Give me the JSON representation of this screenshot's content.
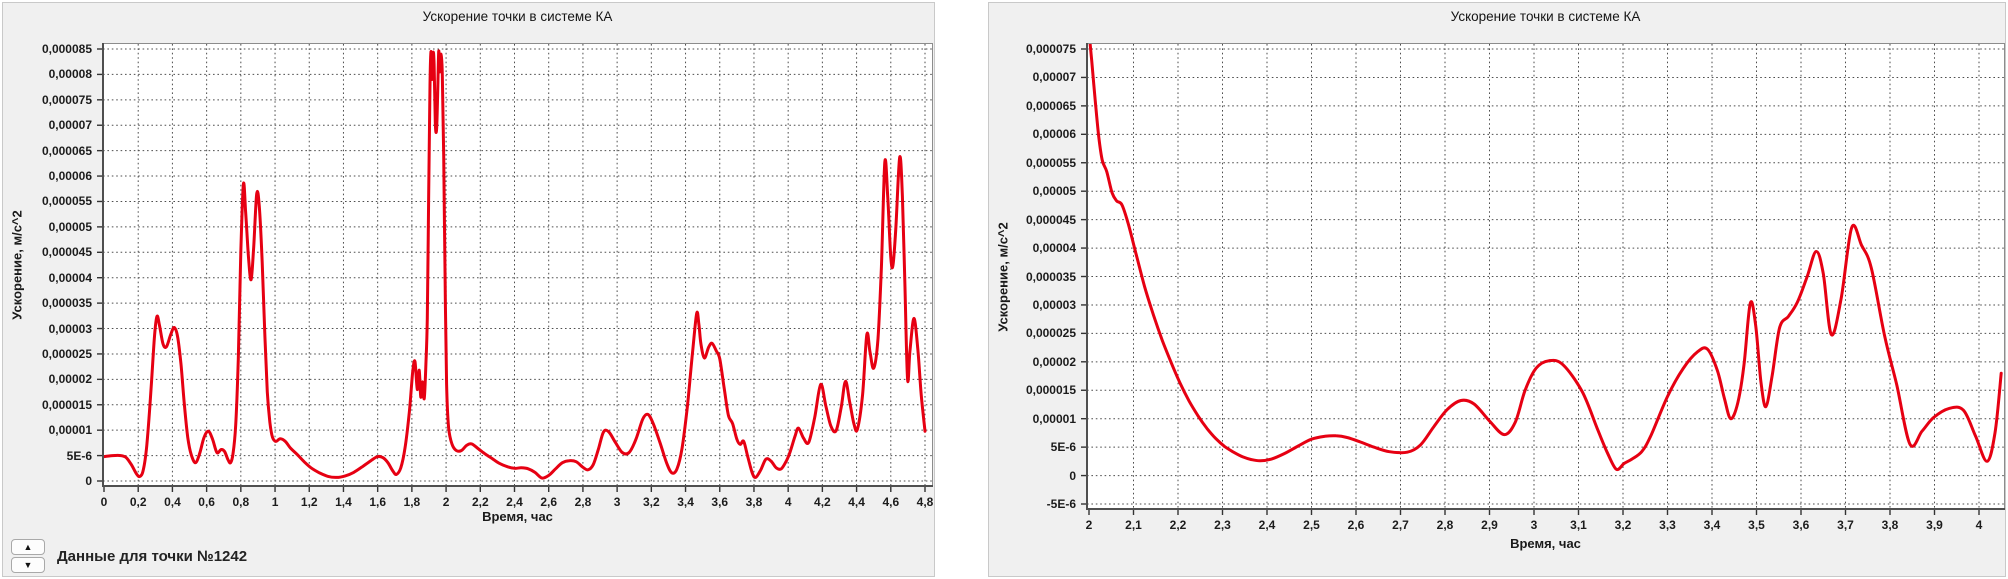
{
  "controls": {
    "point_selector": {
      "label": "Данные для точки №1242",
      "up_icon": "▲",
      "down_icon": "▼"
    }
  },
  "chart_data": [
    {
      "type": "line",
      "title": "Ускорение точки в системе КА",
      "xlabel": "Время, час",
      "ylabel": "Ускорение, м/с^2",
      "xlim": [
        0,
        4.8
      ],
      "ylim": [
        0,
        8.5e-05
      ],
      "grid": true,
      "legend": "none",
      "line_color": "#e60012",
      "grid_color": "#4e4e4e",
      "x_tick_labels": [
        "0",
        "0,2",
        "0,4",
        "0,6",
        "0,8",
        "1",
        "1,2",
        "1,4",
        "1,6",
        "1,8",
        "2",
        "2,2",
        "2,4",
        "2,6",
        "2,8",
        "3",
        "3,2",
        "3,4",
        "3,6",
        "3,8",
        "4",
        "4,2",
        "4,4",
        "4,6",
        "4,8"
      ],
      "y_tick_labels": [
        "0,000085",
        "0,00008",
        "0,000075",
        "0,00007",
        "0,000065",
        "0,00006",
        "0,000055",
        "0,00005",
        "0,000045",
        "0,00004",
        "0,000035",
        "0,00003",
        "0,000025",
        "0,00002",
        "0,000015",
        "0,00001",
        "5E-6",
        "0"
      ],
      "y_scale": 1e-06,
      "points": [
        [
          0,
          4.8
        ],
        [
          0.05,
          5
        ],
        [
          0.1,
          5
        ],
        [
          0.13,
          4.6
        ],
        [
          0.16,
          3.2
        ],
        [
          0.19,
          1.4
        ],
        [
          0.21,
          0.9
        ],
        [
          0.23,
          2.2
        ],
        [
          0.25,
          7
        ],
        [
          0.275,
          18
        ],
        [
          0.295,
          28.5
        ],
        [
          0.31,
          32.4
        ],
        [
          0.325,
          30.5
        ],
        [
          0.345,
          27
        ],
        [
          0.365,
          26.4
        ],
        [
          0.39,
          28.8
        ],
        [
          0.41,
          30.2
        ],
        [
          0.43,
          28.5
        ],
        [
          0.45,
          23
        ],
        [
          0.47,
          15
        ],
        [
          0.49,
          8.5
        ],
        [
          0.51,
          5.2
        ],
        [
          0.535,
          3.6
        ],
        [
          0.56,
          5.5
        ],
        [
          0.585,
          8.6
        ],
        [
          0.61,
          9.8
        ],
        [
          0.635,
          8.2
        ],
        [
          0.66,
          5.6
        ],
        [
          0.685,
          6.2
        ],
        [
          0.705,
          5.8
        ],
        [
          0.725,
          4.2
        ],
        [
          0.74,
          3.6
        ],
        [
          0.755,
          5.5
        ],
        [
          0.77,
          11
        ],
        [
          0.785,
          24
        ],
        [
          0.8,
          45
        ],
        [
          0.815,
          58.4
        ],
        [
          0.828,
          53
        ],
        [
          0.845,
          44
        ],
        [
          0.86,
          39.6
        ],
        [
          0.875,
          46
        ],
        [
          0.893,
          56.5
        ],
        [
          0.908,
          54
        ],
        [
          0.925,
          43
        ],
        [
          0.94,
          29
        ],
        [
          0.955,
          17.5
        ],
        [
          0.97,
          11.5
        ],
        [
          0.985,
          8.6
        ],
        [
          1.005,
          7.8
        ],
        [
          1.03,
          8.3
        ],
        [
          1.06,
          7.8
        ],
        [
          1.09,
          6.5
        ],
        [
          1.13,
          5.2
        ],
        [
          1.17,
          3.8
        ],
        [
          1.21,
          2.6
        ],
        [
          1.26,
          1.6
        ],
        [
          1.31,
          0.9
        ],
        [
          1.36,
          0.7
        ],
        [
          1.41,
          1
        ],
        [
          1.46,
          1.7
        ],
        [
          1.51,
          2.8
        ],
        [
          1.56,
          4
        ],
        [
          1.6,
          4.8
        ],
        [
          1.63,
          4.6
        ],
        [
          1.66,
          3.6
        ],
        [
          1.69,
          1.9
        ],
        [
          1.71,
          1.3
        ],
        [
          1.735,
          2.6
        ],
        [
          1.76,
          6.5
        ],
        [
          1.785,
          13.5
        ],
        [
          1.805,
          21.5
        ],
        [
          1.818,
          23.5
        ],
        [
          1.832,
          18
        ],
        [
          1.843,
          21.8
        ],
        [
          1.852,
          16.5
        ],
        [
          1.862,
          19.5
        ],
        [
          1.872,
          16.2
        ],
        [
          1.882,
          23
        ],
        [
          1.89,
          32
        ],
        [
          1.898,
          55
        ],
        [
          1.906,
          78
        ],
        [
          1.912,
          84.5
        ],
        [
          1.918,
          79
        ],
        [
          1.924,
          84.2
        ],
        [
          1.93,
          82
        ],
        [
          1.937,
          70.5
        ],
        [
          1.944,
          69
        ],
        [
          1.95,
          75
        ],
        [
          1.957,
          84.5
        ],
        [
          1.963,
          80.5
        ],
        [
          1.97,
          84
        ],
        [
          1.978,
          80
        ],
        [
          1.986,
          64
        ],
        [
          1.994,
          40
        ],
        [
          2.003,
          19
        ],
        [
          2.015,
          10.5
        ],
        [
          2.035,
          7.2
        ],
        [
          2.06,
          6
        ],
        [
          2.09,
          6
        ],
        [
          2.12,
          7
        ],
        [
          2.15,
          7.3
        ],
        [
          2.19,
          6.3
        ],
        [
          2.23,
          5.3
        ],
        [
          2.27,
          4.4
        ],
        [
          2.31,
          3.5
        ],
        [
          2.36,
          2.8
        ],
        [
          2.4,
          2.5
        ],
        [
          2.44,
          2.6
        ],
        [
          2.48,
          2.4
        ],
        [
          2.52,
          1.7
        ],
        [
          2.56,
          0.6
        ],
        [
          2.6,
          1.1
        ],
        [
          2.64,
          2.4
        ],
        [
          2.68,
          3.6
        ],
        [
          2.72,
          4
        ],
        [
          2.76,
          3.8
        ],
        [
          2.8,
          2.7
        ],
        [
          2.83,
          2.2
        ],
        [
          2.86,
          3.2
        ],
        [
          2.89,
          6.2
        ],
        [
          2.92,
          9.6
        ],
        [
          2.95,
          9.7
        ],
        [
          2.99,
          7.6
        ],
        [
          3.03,
          5.6
        ],
        [
          3.07,
          5.6
        ],
        [
          3.11,
          8.2
        ],
        [
          3.15,
          12.2
        ],
        [
          3.18,
          13.1
        ],
        [
          3.21,
          11.4
        ],
        [
          3.25,
          7.6
        ],
        [
          3.29,
          3.5
        ],
        [
          3.32,
          1.6
        ],
        [
          3.35,
          2.4
        ],
        [
          3.38,
          6.5
        ],
        [
          3.41,
          14.5
        ],
        [
          3.44,
          25
        ],
        [
          3.465,
          33
        ],
        [
          3.478,
          30.8
        ],
        [
          3.49,
          27
        ],
        [
          3.51,
          24.2
        ],
        [
          3.535,
          26.3
        ],
        [
          3.555,
          27.1
        ],
        [
          3.58,
          25.6
        ],
        [
          3.6,
          24
        ],
        [
          3.625,
          18.5
        ],
        [
          3.65,
          13
        ],
        [
          3.675,
          11.3
        ],
        [
          3.7,
          8.2
        ],
        [
          3.72,
          7.2
        ],
        [
          3.74,
          7.8
        ],
        [
          3.765,
          4.6
        ],
        [
          3.79,
          1.6
        ],
        [
          3.81,
          0.7
        ],
        [
          3.84,
          2.2
        ],
        [
          3.87,
          4.3
        ],
        [
          3.9,
          3.9
        ],
        [
          3.93,
          2.6
        ],
        [
          3.96,
          2.4
        ],
        [
          3.99,
          4
        ],
        [
          4.01,
          5.6
        ],
        [
          4.04,
          8.8
        ],
        [
          4.06,
          10.4
        ],
        [
          4.09,
          8.4
        ],
        [
          4.12,
          7.6
        ],
        [
          4.155,
          12.5
        ],
        [
          4.19,
          19
        ],
        [
          4.22,
          14.8
        ],
        [
          4.25,
          10.8
        ],
        [
          4.28,
          9.9
        ],
        [
          4.31,
          14.5
        ],
        [
          4.335,
          19.6
        ],
        [
          4.36,
          15.5
        ],
        [
          4.385,
          11.2
        ],
        [
          4.405,
          10.2
        ],
        [
          4.435,
          17
        ],
        [
          4.46,
          28.8
        ],
        [
          4.478,
          25.5
        ],
        [
          4.5,
          22.2
        ],
        [
          4.525,
          28
        ],
        [
          4.545,
          42
        ],
        [
          4.565,
          62.7
        ],
        [
          4.582,
          56
        ],
        [
          4.6,
          44
        ],
        [
          4.613,
          42.5
        ],
        [
          4.63,
          50
        ],
        [
          4.652,
          63.7
        ],
        [
          4.668,
          56
        ],
        [
          4.683,
          38
        ],
        [
          4.698,
          20
        ],
        [
          4.712,
          25.5
        ],
        [
          4.735,
          32
        ],
        [
          4.758,
          26
        ],
        [
          4.778,
          17
        ],
        [
          4.8,
          9.8
        ]
      ]
    },
    {
      "type": "line",
      "title": "Ускорение точки в системе КА",
      "xlabel": "Время, час",
      "ylabel": "Ускорение, м/с^2",
      "xlim": [
        2,
        4
      ],
      "ylim": [
        -5e-06,
        7.5e-05
      ],
      "grid": true,
      "legend": "none",
      "line_color": "#e60012",
      "grid_color": "#4e4e4e",
      "x_tick_labels": [
        "2",
        "2,1",
        "2,2",
        "2,3",
        "2,4",
        "2,5",
        "2,6",
        "2,7",
        "2,8",
        "2,9",
        "3",
        "3,1",
        "3,2",
        "3,3",
        "3,4",
        "3,5",
        "3,6",
        "3,7",
        "3,8",
        "3,9",
        "4"
      ],
      "y_tick_labels": [
        "0,000075",
        "0,00007",
        "0,000065",
        "0,00006",
        "0,000055",
        "0,00005",
        "0,000045",
        "0,00004",
        "0,000035",
        "0,00003",
        "0,000025",
        "0,00002",
        "0,000015",
        "0,00001",
        "5E-6",
        "0",
        "-5E-6"
      ],
      "y_scale": 1e-06,
      "points": [
        [
          2,
          78
        ],
        [
          2.006,
          73
        ],
        [
          2.014,
          66
        ],
        [
          2.022,
          59.5
        ],
        [
          2.03,
          55.4
        ],
        [
          2.04,
          53.4
        ],
        [
          2.052,
          49.7
        ],
        [
          2.062,
          48.3
        ],
        [
          2.074,
          47.6
        ],
        [
          2.088,
          44.3
        ],
        [
          2.105,
          39.2
        ],
        [
          2.125,
          33.2
        ],
        [
          2.145,
          28.2
        ],
        [
          2.165,
          23.7
        ],
        [
          2.185,
          19.8
        ],
        [
          2.205,
          16.2
        ],
        [
          2.225,
          13.1
        ],
        [
          2.245,
          10.5
        ],
        [
          2.265,
          8.3
        ],
        [
          2.285,
          6.5
        ],
        [
          2.305,
          5.1
        ],
        [
          2.325,
          4.1
        ],
        [
          2.345,
          3.3
        ],
        [
          2.365,
          2.8
        ],
        [
          2.385,
          2.6
        ],
        [
          2.41,
          2.9
        ],
        [
          2.44,
          3.9
        ],
        [
          2.47,
          5.2
        ],
        [
          2.5,
          6.4
        ],
        [
          2.53,
          6.9
        ],
        [
          2.555,
          7
        ],
        [
          2.58,
          6.7
        ],
        [
          2.61,
          5.9
        ],
        [
          2.64,
          5
        ],
        [
          2.675,
          4.2
        ],
        [
          2.715,
          4.1
        ],
        [
          2.745,
          5.4
        ],
        [
          2.775,
          8.6
        ],
        [
          2.805,
          11.6
        ],
        [
          2.836,
          13.2
        ],
        [
          2.865,
          12.6
        ],
        [
          2.9,
          9.6
        ],
        [
          2.933,
          7.2
        ],
        [
          2.958,
          9.4
        ],
        [
          2.98,
          15
        ],
        [
          3.005,
          18.9
        ],
        [
          3.034,
          20.2
        ],
        [
          3.065,
          19.5
        ],
        [
          3.108,
          14.8
        ],
        [
          3.142,
          8.3
        ],
        [
          3.165,
          4
        ],
        [
          3.185,
          1.1
        ],
        [
          3.202,
          2.1
        ],
        [
          3.22,
          2.9
        ],
        [
          3.242,
          4.2
        ],
        [
          3.262,
          6.9
        ],
        [
          3.3,
          13.9
        ],
        [
          3.335,
          18.8
        ],
        [
          3.368,
          21.8
        ],
        [
          3.39,
          22.2
        ],
        [
          3.412,
          18.5
        ],
        [
          3.428,
          13.5
        ],
        [
          3.442,
          10
        ],
        [
          3.458,
          12.8
        ],
        [
          3.472,
          19.5
        ],
        [
          3.486,
          30.3
        ],
        [
          3.498,
          26.5
        ],
        [
          3.51,
          16.5
        ],
        [
          3.521,
          12.1
        ],
        [
          3.535,
          17.5
        ],
        [
          3.552,
          26
        ],
        [
          3.572,
          28
        ],
        [
          3.592,
          30.5
        ],
        [
          3.614,
          35
        ],
        [
          3.634,
          39.4
        ],
        [
          3.65,
          35.5
        ],
        [
          3.668,
          24.8
        ],
        [
          3.69,
          31
        ],
        [
          3.714,
          43.6
        ],
        [
          3.736,
          40.5
        ],
        [
          3.758,
          36.5
        ],
        [
          3.788,
          24.5
        ],
        [
          3.815,
          16
        ],
        [
          3.845,
          5.5
        ],
        [
          3.872,
          7.8
        ],
        [
          3.898,
          10.2
        ],
        [
          3.933,
          11.8
        ],
        [
          3.965,
          11.5
        ],
        [
          3.992,
          7
        ],
        [
          4.018,
          2.5
        ],
        [
          4.036,
          7.5
        ],
        [
          4.05,
          18
        ]
      ]
    }
  ]
}
